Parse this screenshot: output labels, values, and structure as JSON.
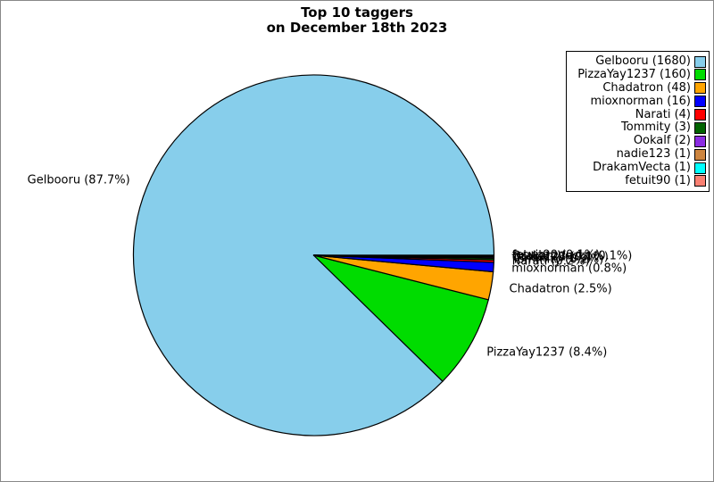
{
  "title": {
    "line1": "Top 10 taggers",
    "line2": "on December 18th 2023"
  },
  "colors": {
    "figure_border": "#888888",
    "background": "#ffffff",
    "slice_edge": "#000000"
  },
  "chart_data": {
    "type": "pie",
    "title": "Top 10 taggers on December 18th 2023",
    "start_angle_deg": 0,
    "direction": "counterclockwise",
    "label_distance": 1.1,
    "legend_position": "upper right",
    "slices": [
      {
        "label": "Gelbooru",
        "count": 1680,
        "percent": "87.7%",
        "color": "#87CEEB"
      },
      {
        "label": "PizzaYay1237",
        "count": 160,
        "percent": "8.4%",
        "color": "#00DC00"
      },
      {
        "label": "Chadatron",
        "count": 48,
        "percent": "2.5%",
        "color": "#FFA500"
      },
      {
        "label": "mioxnorman",
        "count": 16,
        "percent": "0.8%",
        "color": "#0000FF"
      },
      {
        "label": "Narati",
        "count": 4,
        "percent": "0.2%",
        "color": "#FF0000"
      },
      {
        "label": "Tommity",
        "count": 3,
        "percent": "0.2%",
        "color": "#006400"
      },
      {
        "label": "Ookalf",
        "count": 2,
        "percent": "0.1%",
        "color": "#8A2BE2"
      },
      {
        "label": "nadie123",
        "count": 1,
        "percent": "0.1%",
        "color": "#CD853F"
      },
      {
        "label": "DrakamVecta",
        "count": 1,
        "percent": "0.1%",
        "color": "#00FFFF"
      },
      {
        "label": "fetuit90",
        "count": 1,
        "percent": "0.1%",
        "color": "#FA8072"
      }
    ]
  }
}
